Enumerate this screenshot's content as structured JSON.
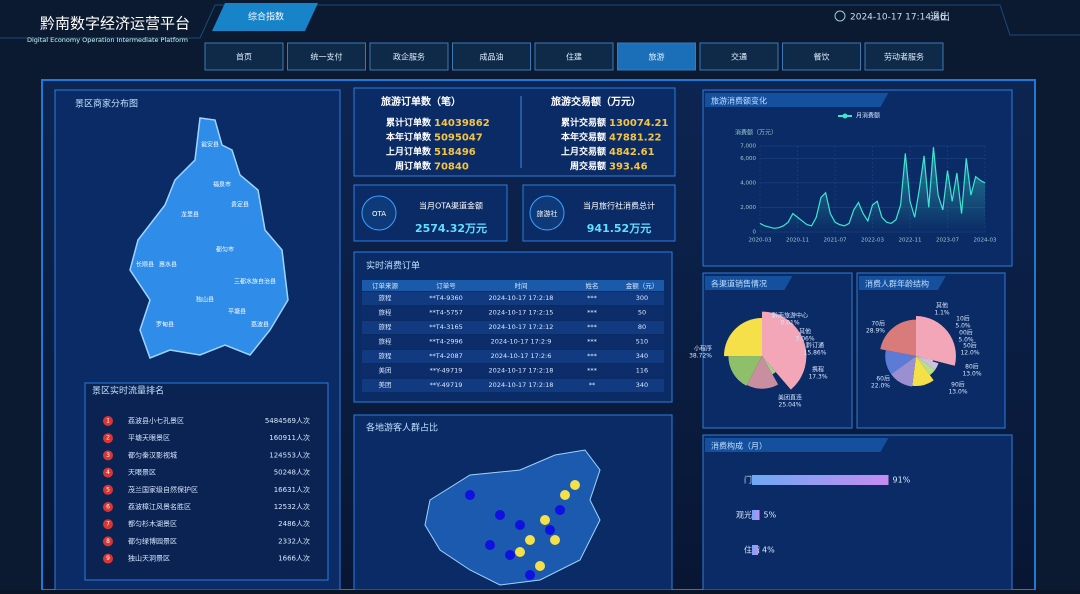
{
  "header": {
    "title": "黔南数字经济运营平台",
    "subtitle": "Digital Economy Operation Intermediate Platform",
    "tab": "综合指数",
    "time": "2024-10-17 17:14:46",
    "logout": "退出"
  },
  "nav": [
    "首页",
    "统一支付",
    "政企服务",
    "成品油",
    "住建",
    "旅游",
    "交通",
    "餐饮",
    "劳动者服务"
  ],
  "nav_active": 5,
  "map_panel": {
    "title": "景区商家分布图",
    "labels": [
      "瓮安县",
      "福泉市",
      "贵定县",
      "龙里县",
      "都匀市",
      "惠水县",
      "长顺县",
      "独山县",
      "三都水族自治县",
      "平塘县",
      "罗甸县",
      "荔波县"
    ]
  },
  "ranking": {
    "title": "景区实时流量排名",
    "items": [
      {
        "rank": 1,
        "name": "荔波县小七孔景区",
        "count": "5484569人次"
      },
      {
        "rank": 2,
        "name": "平塘天眼景区",
        "count": "160911人次"
      },
      {
        "rank": 3,
        "name": "都匀秦汉影视城",
        "count": "124553人次"
      },
      {
        "rank": 4,
        "name": "天眼景区",
        "count": "50248人次"
      },
      {
        "rank": 5,
        "name": "茂兰国家级自然保护区",
        "count": "16631人次"
      },
      {
        "rank": 6,
        "name": "荔波樟江风景名胜区",
        "count": "12532人次"
      },
      {
        "rank": 7,
        "name": "都匀杉木湖景区",
        "count": "2486人次"
      },
      {
        "rank": 8,
        "name": "都匀绿博园景区",
        "count": "2332人次"
      },
      {
        "rank": 9,
        "name": "独山天洞景区",
        "count": "1666人次"
      }
    ]
  },
  "stats": {
    "orders": {
      "title": "旅游订单数（笔）",
      "rows": [
        {
          "label": "累计订单数",
          "value": 14039862
        },
        {
          "label": "本年订单数",
          "value": 5095047
        },
        {
          "label": "上月订单数",
          "value": 518496
        },
        {
          "label": "周订单数",
          "value": 70840
        }
      ]
    },
    "amount": {
      "title": "旅游交易额（万元）",
      "rows": [
        {
          "label": "累计交易额",
          "value": 130074.21
        },
        {
          "label": "本年交易额",
          "value": 47881.22
        },
        {
          "label": "上月交易额",
          "value": 4842.61
        },
        {
          "label": "周交易额",
          "value": 393.46
        }
      ]
    }
  },
  "cards": [
    {
      "icon": "OTA",
      "label": "当月OTA渠道金额",
      "value": "2574.32万元"
    },
    {
      "icon": "旅游社",
      "label": "当月旅行社消费总计",
      "value": "941.52万元"
    }
  ],
  "orders_table": {
    "title": "实时消费订单",
    "columns": [
      "订单来源",
      "订单号",
      "时间",
      "姓名",
      "金额（元）"
    ],
    "rows": [
      [
        "旅程",
        "**T4-9360",
        "2024-10-17 17:2:18",
        "***",
        300
      ],
      [
        "旅程",
        "**T4-5757",
        "2024-10-17 17:2:15",
        "***",
        50
      ],
      [
        "旅程",
        "**T4-3165",
        "2024-10-17 17:2:12",
        "***",
        80
      ],
      [
        "旅程",
        "**T4-2996",
        "2024-10-17 17:2:9",
        "***",
        510
      ],
      [
        "旅程",
        "**T4-2087",
        "2024-10-17 17:2:6",
        "***",
        340
      ],
      [
        "美团",
        "**Y-49719",
        "2024-10-17 17:2:18",
        "***",
        116
      ],
      [
        "美团",
        "**Y-49719",
        "2024-10-17 17:2:18",
        "**",
        340
      ]
    ]
  },
  "visitor_map": {
    "title": "各地游客人群占比"
  },
  "chart_data": [
    {
      "type": "line",
      "title": "旅游消费额变化",
      "y_label": "消费额（万元）",
      "categories": [
        "2020-03",
        null,
        null,
        null,
        null,
        null,
        null,
        null,
        "2020-11",
        null,
        null,
        null,
        null,
        null,
        null,
        null,
        "2021-07",
        null,
        null,
        null,
        null,
        null,
        null,
        null,
        "2022-03",
        null,
        null,
        null,
        null,
        null,
        null,
        null,
        "2022-11",
        null,
        null,
        null,
        null,
        null,
        null,
        null,
        "2023-07",
        null,
        null,
        null,
        null,
        null,
        null,
        null,
        "2024-03"
      ],
      "series": [
        {
          "name": "月消费额",
          "color": "#3ee6d0",
          "values": [
            700,
            500,
            400,
            300,
            350,
            500,
            800,
            1500,
            1200,
            900,
            600,
            500,
            1200,
            2800,
            3200,
            1500,
            800,
            600,
            500,
            700,
            1800,
            2400,
            1500,
            900,
            2200,
            2500,
            1200,
            800,
            700,
            1000,
            2200,
            6400,
            2500,
            1200,
            3500,
            6200,
            2000,
            6900,
            3000,
            1800,
            5000,
            2500,
            4800,
            1500,
            6000,
            3000,
            4500,
            4200,
            4000
          ]
        }
      ],
      "ylim": [
        0,
        7000
      ],
      "yticks": [
        0,
        {
          "value": 2000,
          "label": "2,000"
        },
        {
          "value": 4000,
          "label": "4,000"
        },
        {
          "value": 6000,
          "label": "6,000"
        },
        {
          "value": 7000,
          "label": "7,000"
        }
      ],
      "grid": true
    },
    {
      "type": "pie",
      "title": "各渠道销售情况",
      "categories": [
        "小程序",
        "黔南旅游中心",
        "其他",
        "黔订通",
        "携程",
        "美团直连"
      ],
      "values": [
        38.72,
        0.01,
        3.06,
        15.86,
        17.3,
        25.04
      ],
      "value_labels": [
        "38.72%",
        "0.01%",
        "3.06%",
        "15.86%",
        "17.3%",
        "25.04%"
      ],
      "colors": [
        "#f3a6b8",
        "#d0d0d0",
        "#a4d08a",
        "#c98fa0",
        "#8fbf6a",
        "#f5e04a"
      ]
    },
    {
      "type": "pie",
      "title": "消费人群年龄结构",
      "categories": [
        "70后",
        "其他",
        "10后",
        "00后",
        "50后",
        "80后",
        "90后",
        "60后"
      ],
      "values": [
        28.9,
        1.1,
        5.0,
        5.0,
        12.0,
        13.0,
        13.0,
        22.0
      ],
      "value_labels": [
        "28.9%",
        "1.1%",
        "5.0%",
        "5.0%",
        "12.0%",
        "13.0%",
        "13.0%",
        "22.0%"
      ],
      "colors": [
        "#f3a6b8",
        "#e0e0e0",
        "#d0c0e0",
        "#b8e08a",
        "#f5e04a",
        "#9a8fd0",
        "#5b7bd6",
        "#d97b7b"
      ]
    },
    {
      "type": "bar",
      "title": "消费构成（月）",
      "categories": [
        "门票",
        "观光车",
        "住宿"
      ],
      "values": [
        91,
        5,
        4
      ],
      "value_labels": [
        "91%",
        "5%",
        "4%"
      ],
      "color": "#a98cf0"
    }
  ]
}
